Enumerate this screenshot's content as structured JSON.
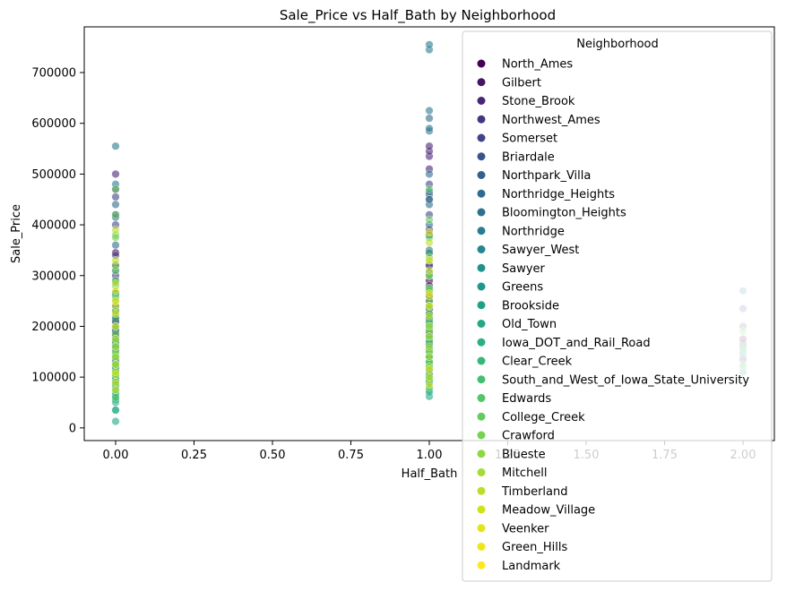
{
  "chart_data": {
    "type": "scatter",
    "title": "Sale_Price vs Half_Bath by Neighborhood",
    "xlabel": "Half_Bath",
    "ylabel": "Sale_Price",
    "xlim": [
      -0.1,
      2.1
    ],
    "ylim": [
      -25000,
      790000
    ],
    "xticks": [
      0.0,
      0.25,
      0.5,
      0.75,
      1.0,
      1.25,
      1.5,
      1.75,
      2.0
    ],
    "xtick_labels": [
      "0.00",
      "0.25",
      "0.50",
      "0.75",
      "1.00",
      "1.25",
      "1.50",
      "1.75",
      "2.00"
    ],
    "yticks": [
      0,
      100000,
      200000,
      300000,
      400000,
      500000,
      600000,
      700000
    ],
    "ytick_labels": [
      "0",
      "100000",
      "200000",
      "300000",
      "400000",
      "500000",
      "600000",
      "700000"
    ],
    "grid": false,
    "legend": {
      "title": "Neighborhood",
      "placement": "upper-right",
      "entries": [
        {
          "name": "North_Ames",
          "color": "#440154"
        },
        {
          "name": "Gilbert",
          "color": "#471365"
        },
        {
          "name": "Stone_Brook",
          "color": "#482575"
        },
        {
          "name": "Northwest_Ames",
          "color": "#453581"
        },
        {
          "name": "Somerset",
          "color": "#414487"
        },
        {
          "name": "Briardale",
          "color": "#3b528b"
        },
        {
          "name": "Northpark_Villa",
          "color": "#355f8d"
        },
        {
          "name": "Northridge_Heights",
          "color": "#306a8e"
        },
        {
          "name": "Bloomington_Heights",
          "color": "#2c728e"
        },
        {
          "name": "Northridge",
          "color": "#287c8e"
        },
        {
          "name": "Sawyer_West",
          "color": "#24868e"
        },
        {
          "name": "Sawyer",
          "color": "#21918c"
        },
        {
          "name": "Greens",
          "color": "#1f988b"
        },
        {
          "name": "Brookside",
          "color": "#1fa188"
        },
        {
          "name": "Old_Town",
          "color": "#22a884"
        },
        {
          "name": "Iowa_DOT_and_Rail_Road",
          "color": "#2ab07f"
        },
        {
          "name": "Clear_Creek",
          "color": "#35b779"
        },
        {
          "name": "South_and_West_of_Iowa_State_University",
          "color": "#44bf70"
        },
        {
          "name": "Edwards",
          "color": "#54c568"
        },
        {
          "name": "College_Creek",
          "color": "#65cb5e"
        },
        {
          "name": "Crawford",
          "color": "#7ad151"
        },
        {
          "name": "Blueste",
          "color": "#8fd744"
        },
        {
          "name": "Mitchell",
          "color": "#a5db36"
        },
        {
          "name": "Timberland",
          "color": "#bade28"
        },
        {
          "name": "Meadow_Village",
          "color": "#d0e11c"
        },
        {
          "name": "Veenker",
          "color": "#e4e419"
        },
        {
          "name": "Green_Hills",
          "color": "#efe51c"
        },
        {
          "name": "Landmark",
          "color": "#fde725"
        }
      ]
    },
    "series": [
      {
        "x": 0,
        "color": "#440154",
        "values": [
          95000,
          115000,
          130000,
          140000,
          155000,
          170000,
          185000,
          215000,
          265000,
          320000,
          345000
        ]
      },
      {
        "x": 0,
        "color": "#471365",
        "values": [
          165000,
          180000,
          195000,
          210000,
          230000
        ]
      },
      {
        "x": 0,
        "color": "#482575",
        "values": [
          420000,
          470000,
          500000
        ]
      },
      {
        "x": 0,
        "color": "#453581",
        "values": [
          160000,
          185000,
          210000,
          240000,
          300000
        ]
      },
      {
        "x": 0,
        "color": "#414487",
        "values": [
          190000,
          230000,
          290000,
          340000,
          400000,
          455000
        ]
      },
      {
        "x": 0,
        "color": "#3b528b",
        "values": [
          90000,
          110000
        ]
      },
      {
        "x": 0,
        "color": "#306a8e",
        "values": [
          310000,
          360000,
          415000,
          440000
        ]
      },
      {
        "x": 0,
        "color": "#2c728e",
        "values": [
          160000,
          190000,
          220000
        ]
      },
      {
        "x": 0,
        "color": "#287c8e",
        "values": [
          480000,
          555000
        ]
      },
      {
        "x": 0,
        "color": "#21918c",
        "values": [
          60000,
          95000,
          120000,
          150000,
          170000
        ]
      },
      {
        "x": 0,
        "color": "#1fa188",
        "values": [
          70000,
          90000,
          110000,
          125000
        ]
      },
      {
        "x": 0,
        "color": "#22a884",
        "values": [
          12789,
          35000,
          50000,
          65000,
          75000,
          85000,
          100000,
          115000,
          135000,
          160000,
          230000,
          265000
        ]
      },
      {
        "x": 0,
        "color": "#2ab07f",
        "values": [
          35000,
          55000,
          80000,
          100000,
          120000
        ]
      },
      {
        "x": 0,
        "color": "#35b779",
        "values": [
          170000,
          215000,
          260000
        ]
      },
      {
        "x": 0,
        "color": "#54c568",
        "values": [
          60000,
          85000,
          105000,
          125000,
          140000,
          160000,
          290000
        ]
      },
      {
        "x": 0,
        "color": "#65cb5e",
        "values": [
          105000,
          125000,
          145000,
          175000,
          200000,
          230000,
          255000,
          280000,
          310000,
          380000,
          420000,
          470000
        ]
      },
      {
        "x": 0,
        "color": "#7ad151",
        "values": [
          125000,
          150000,
          185000,
          250000,
          320000,
          375000
        ]
      },
      {
        "x": 0,
        "color": "#a5db36",
        "values": [
          105000,
          125000,
          140000,
          160000,
          175000
        ]
      },
      {
        "x": 0,
        "color": "#bade28",
        "values": [
          200000,
          240000,
          285000,
          330000,
          390000
        ]
      },
      {
        "x": 0,
        "color": "#d0e11c",
        "values": [
          75000,
          90000,
          110000
        ]
      },
      {
        "x": 0,
        "color": "#e4e419",
        "values": [
          225000,
          250000,
          270000
        ]
      },
      {
        "x": 1,
        "color": "#440154",
        "values": [
          120000,
          140000,
          155000,
          165000,
          180000,
          190000,
          205000,
          225000,
          250000,
          290000,
          345000
        ]
      },
      {
        "x": 1,
        "color": "#471365",
        "values": [
          170000,
          185000,
          200000,
          215000,
          235000,
          260000,
          280000
        ]
      },
      {
        "x": 1,
        "color": "#482575",
        "values": [
          320000,
          390000,
          450000,
          510000,
          535000,
          545000,
          555000
        ]
      },
      {
        "x": 1,
        "color": "#453581",
        "values": [
          190000,
          215000,
          240000,
          270000,
          305000
        ]
      },
      {
        "x": 1,
        "color": "#414487",
        "values": [
          210000,
          260000,
          320000,
          380000,
          420000,
          460000,
          480000
        ]
      },
      {
        "x": 1,
        "color": "#3b528b",
        "values": [
          100000,
          115000
        ]
      },
      {
        "x": 1,
        "color": "#355f8d",
        "values": [
          140000,
          155000
        ]
      },
      {
        "x": 1,
        "color": "#306a8e",
        "values": [
          300000,
          350000,
          400000,
          440000,
          465000,
          500000,
          585000,
          610000
        ]
      },
      {
        "x": 1,
        "color": "#2c728e",
        "values": [
          165000,
          200000,
          235000
        ]
      },
      {
        "x": 1,
        "color": "#287c8e",
        "values": [
          380000,
          450000,
          590000,
          625000,
          745000,
          755000
        ]
      },
      {
        "x": 1,
        "color": "#24868e",
        "values": [
          165000,
          195000,
          225000
        ]
      },
      {
        "x": 1,
        "color": "#21918c",
        "values": [
          105000,
          130000,
          150000,
          175000
        ]
      },
      {
        "x": 1,
        "color": "#1f988b",
        "values": [
          205000,
          215000
        ]
      },
      {
        "x": 1,
        "color": "#1fa188",
        "values": [
          90000,
          115000,
          130000
        ]
      },
      {
        "x": 1,
        "color": "#22a884",
        "values": [
          62000,
          75000,
          90000,
          105000,
          125000,
          150000,
          180000
        ]
      },
      {
        "x": 1,
        "color": "#2ab07f",
        "values": [
          70000,
          95000
        ]
      },
      {
        "x": 1,
        "color": "#35b779",
        "values": [
          195000,
          240000,
          275000,
          345000
        ]
      },
      {
        "x": 1,
        "color": "#44bf70",
        "values": [
          130000,
          150000
        ]
      },
      {
        "x": 1,
        "color": "#54c568",
        "values": [
          80000,
          100000,
          120000,
          140000,
          170000,
          210000,
          270000,
          470000
        ]
      },
      {
        "x": 1,
        "color": "#65cb5e",
        "values": [
          130000,
          155000,
          180000,
          200000,
          225000,
          250000,
          275000,
          300000,
          330000,
          375000,
          410000
        ]
      },
      {
        "x": 1,
        "color": "#7ad151",
        "values": [
          150000,
          190000,
          240000,
          300000,
          335000
        ]
      },
      {
        "x": 1,
        "color": "#a5db36",
        "values": [
          120000,
          140000,
          160000,
          180000,
          200000
        ]
      },
      {
        "x": 1,
        "color": "#bade28",
        "values": [
          220000,
          260000,
          310000,
          365000
        ]
      },
      {
        "x": 1,
        "color": "#d0e11c",
        "values": [
          85000,
          100000,
          115000
        ]
      },
      {
        "x": 1,
        "color": "#e4e419",
        "values": [
          240000,
          265000,
          385000
        ]
      },
      {
        "x": 1,
        "color": "#efe51c",
        "values": [
          330000
        ]
      },
      {
        "x": 2,
        "color": "#440154",
        "values": [
          135000,
          165000,
          175000
        ]
      },
      {
        "x": 2,
        "color": "#453581",
        "values": [
          200000,
          235000
        ]
      },
      {
        "x": 2,
        "color": "#287c8e",
        "values": [
          270000
        ]
      },
      {
        "x": 2,
        "color": "#21918c",
        "values": [
          110000,
          145000
        ]
      },
      {
        "x": 2,
        "color": "#22a884",
        "values": [
          150000,
          160000
        ]
      },
      {
        "x": 2,
        "color": "#54c568",
        "values": [
          120000,
          125000,
          155000
        ]
      },
      {
        "x": 2,
        "color": "#7ad151",
        "values": [
          190000
        ]
      }
    ]
  }
}
